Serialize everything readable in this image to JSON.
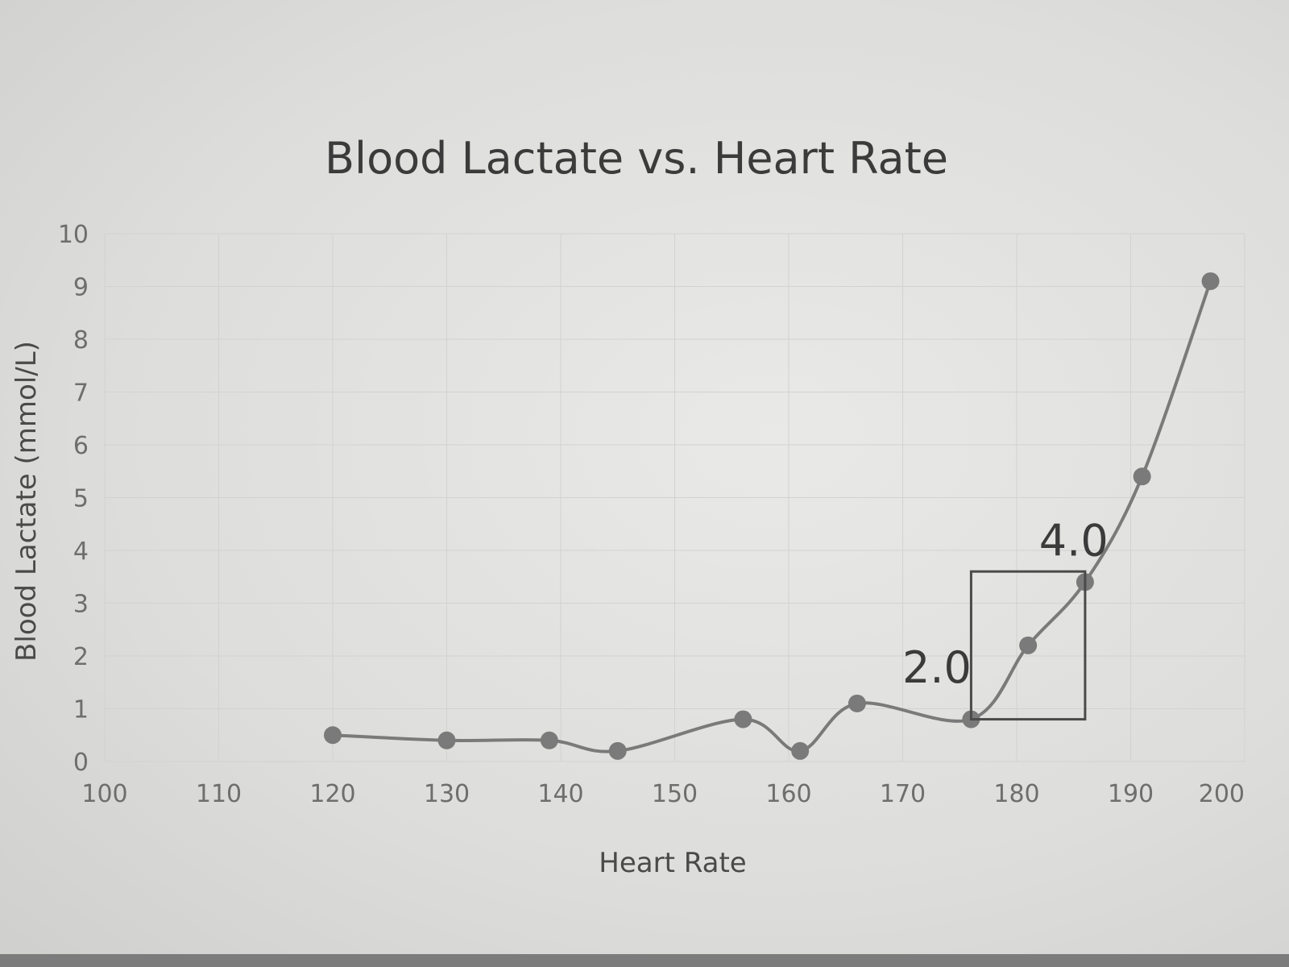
{
  "chart_data": {
    "type": "line",
    "title": "Blood Lactate vs. Heart Rate",
    "xlabel": "Heart Rate",
    "ylabel": "Blood Lactate (mmol/L)",
    "xlim": [
      100,
      200
    ],
    "ylim": [
      0,
      10
    ],
    "x_ticks": [
      "100",
      "110",
      "120",
      "130",
      "140",
      "150",
      "160",
      "170",
      "180",
      "190",
      "200"
    ],
    "y_ticks": [
      "0",
      "1",
      "2",
      "3",
      "4",
      "5",
      "6",
      "7",
      "8",
      "9",
      "10"
    ],
    "grid": true,
    "series": [
      {
        "x": [
          120,
          130,
          139,
          145,
          156,
          161,
          166,
          176,
          181,
          186,
          191,
          197
        ],
        "y": [
          0.5,
          0.4,
          0.4,
          0.2,
          0.8,
          0.2,
          1.1,
          0.8,
          2.2,
          3.4,
          5.4,
          9.1
        ]
      }
    ],
    "annotations": [
      {
        "text": "2.0",
        "x": 173,
        "y": 1.5
      },
      {
        "text": "4.0",
        "x": 185,
        "y": 3.9
      }
    ],
    "highlight_box": {
      "x": [
        176,
        186
      ],
      "y": [
        0.8,
        3.6
      ]
    }
  }
}
